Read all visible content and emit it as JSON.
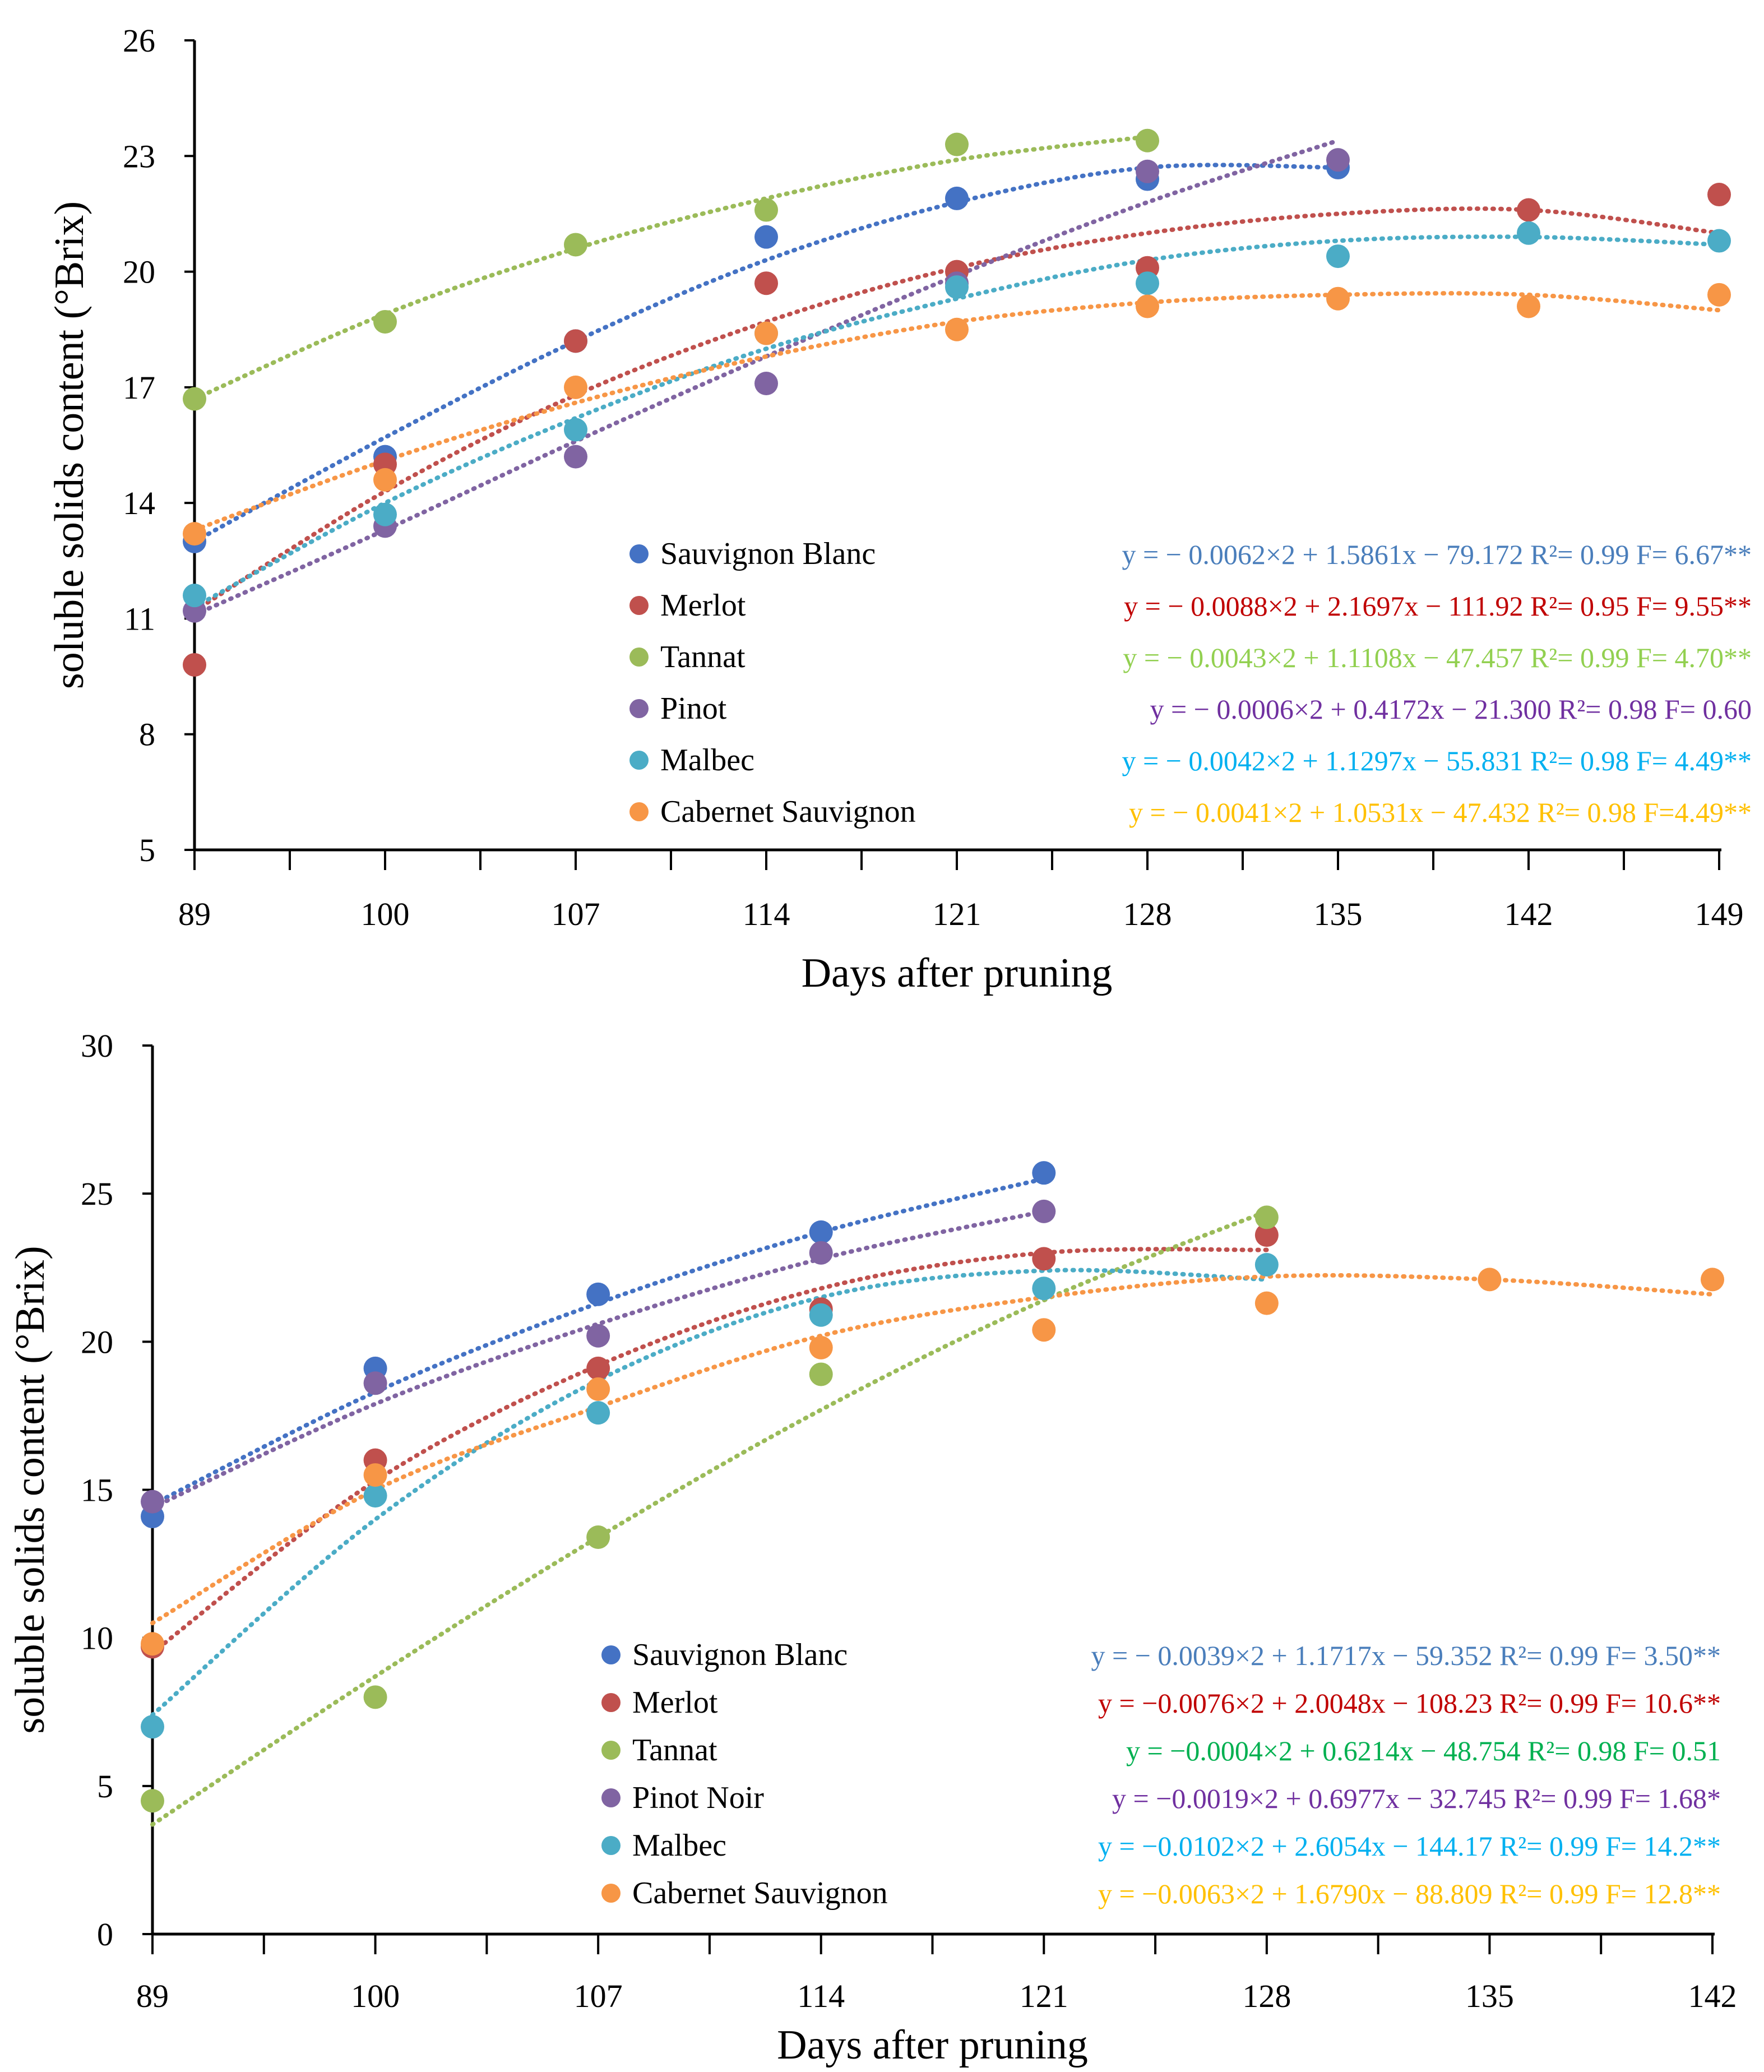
{
  "chart_data": [
    {
      "type": "scatter",
      "xlabel": "Days after pruning",
      "ylabel": "soluble solids content  (°Brix)",
      "x_ticks": [
        "89",
        "100",
        "107",
        "114",
        "121",
        "128",
        "135",
        "142",
        "149"
      ],
      "y_ticks": [
        "5",
        "8",
        "11",
        "14",
        "17",
        "20",
        "23",
        "26"
      ],
      "ylim": [
        5,
        26
      ],
      "series": [
        {
          "name": "Sauvignon Blanc",
          "color": "#4472C4",
          "eq_color": "#4A7EBB",
          "equation": "y = − 0.0062×2 + 1.5861x − 79.172 R²= 0.99 F= 6.67**",
          "points": [
            [
              0,
              13.0
            ],
            [
              1,
              15.2
            ],
            [
              2,
              18.2
            ],
            [
              3,
              20.9
            ],
            [
              4,
              21.9
            ],
            [
              5,
              22.4
            ],
            [
              6,
              22.7
            ]
          ],
          "trend": [
            13.0,
            15.7,
            18.2,
            20.3,
            21.8,
            22.7,
            22.7
          ]
        },
        {
          "name": "Merlot",
          "color": "#C0504D",
          "eq_color": "#C00000",
          "equation": "y = − 0.0088×2 + 2.1697x − 111.92 R²= 0.95 F= 9.55**",
          "points": [
            [
              0,
              9.8
            ],
            [
              1,
              15.0
            ],
            [
              2,
              18.2
            ],
            [
              3,
              19.7
            ],
            [
              4,
              20.0
            ],
            [
              5,
              20.1
            ],
            [
              7,
              21.6
            ],
            [
              8,
              22.0
            ]
          ],
          "trend": [
            11.2,
            14.3,
            16.8,
            18.7,
            20.1,
            21.0,
            21.5,
            21.6,
            21.0
          ]
        },
        {
          "name": "Tannat",
          "color": "#9BBB59",
          "eq_color": "#92D050",
          "equation": "y = − 0.0043×2 + 1.1108x − 47.457 R²= 0.99 F= 4.70**",
          "points": [
            [
              0,
              16.7
            ],
            [
              1,
              18.7
            ],
            [
              2,
              20.7
            ],
            [
              3,
              21.6
            ],
            [
              4,
              23.3
            ],
            [
              5,
              23.4
            ]
          ],
          "trend": [
            16.7,
            18.9,
            20.6,
            21.9,
            22.9,
            23.5
          ]
        },
        {
          "name": "Pinot",
          "color": "#8064A2",
          "eq_color": "#7030A0",
          "equation": "y = − 0.0006×2 + 0.4172x − 21.300 R²= 0.98 F= 0.60",
          "points": [
            [
              0,
              11.2
            ],
            [
              1,
              13.4
            ],
            [
              2,
              15.2
            ],
            [
              3,
              17.1
            ],
            [
              4,
              19.7
            ],
            [
              5,
              22.6
            ],
            [
              6,
              22.9
            ]
          ],
          "trend": [
            11.1,
            13.3,
            15.6,
            17.8,
            19.9,
            21.8,
            23.4
          ]
        },
        {
          "name": "Malbec",
          "color": "#4BACC6",
          "eq_color": "#00B0F0",
          "equation": "y = − 0.0042×2 + 1.1297x − 55.831 R²= 0.98 F= 4.49**",
          "points": [
            [
              0,
              11.6
            ],
            [
              1,
              13.7
            ],
            [
              2,
              15.9
            ],
            [
              3,
              18.4
            ],
            [
              4,
              19.6
            ],
            [
              5,
              19.7
            ],
            [
              6,
              20.4
            ],
            [
              7,
              21.0
            ],
            [
              8,
              20.8
            ]
          ],
          "trend": [
            11.3,
            14.0,
            16.2,
            18.0,
            19.3,
            20.3,
            20.8,
            20.9,
            20.7
          ]
        },
        {
          "name": "Cabernet Sauvignon",
          "color": "#F79646",
          "eq_color": "#FFC000",
          "equation": "y = − 0.0041×2 + 1.0531x − 47.432 R²= 0.98 F=4.49**",
          "points": [
            [
              0,
              13.2
            ],
            [
              1,
              14.6
            ],
            [
              2,
              17.0
            ],
            [
              3,
              18.4
            ],
            [
              4,
              18.5
            ],
            [
              5,
              19.1
            ],
            [
              6,
              19.3
            ],
            [
              7,
              19.1
            ],
            [
              8,
              19.4
            ]
          ],
          "trend": [
            13.3,
            15.1,
            16.6,
            17.8,
            18.7,
            19.2,
            19.4,
            19.4,
            19.0
          ]
        }
      ]
    },
    {
      "type": "scatter",
      "xlabel": "Days after pruning",
      "ylabel": "soluble solids content  (°Brix)",
      "x_ticks": [
        "89",
        "100",
        "107",
        "114",
        "121",
        "128",
        "135",
        "142"
      ],
      "y_ticks": [
        "0",
        "5",
        "10",
        "15",
        "20",
        "25",
        "30"
      ],
      "ylim": [
        0,
        30
      ],
      "series": [
        {
          "name": "Sauvignon Blanc",
          "color": "#4472C4",
          "eq_color": "#4A7EBB",
          "equation": "y = − 0.0039×2 + 1.1717x − 59.352 R²= 0.99 F= 3.50**",
          "points": [
            [
              0,
              14.1
            ],
            [
              1,
              19.1
            ],
            [
              2,
              21.6
            ],
            [
              3,
              23.7
            ],
            [
              4,
              25.7
            ]
          ],
          "trend": [
            14.5,
            18.3,
            21.3,
            23.7,
            25.5
          ]
        },
        {
          "name": "Merlot",
          "color": "#C0504D",
          "eq_color": "#C00000",
          "equation": "y = −0.0076×2 + 2.0048x − 108.23 R²= 0.99 F= 10.6**",
          "points": [
            [
              0,
              9.7
            ],
            [
              1,
              16.0
            ],
            [
              2,
              19.1
            ],
            [
              3,
              21.1
            ],
            [
              4,
              22.8
            ],
            [
              5,
              23.6
            ]
          ],
          "trend": [
            9.5,
            15.3,
            19.2,
            21.8,
            23.0,
            23.1
          ]
        },
        {
          "name": "Tannat",
          "color": "#9BBB59",
          "eq_color": "#00B050",
          "equation": "y = −0.0004×2 + 0.6214x − 48.754 R²= 0.98 F= 0.51",
          "points": [
            [
              0,
              4.5
            ],
            [
              1,
              8.0
            ],
            [
              2,
              13.4
            ],
            [
              3,
              18.9
            ],
            [
              5,
              24.2
            ]
          ],
          "trend": [
            3.7,
            8.7,
            13.4,
            17.7,
            21.4,
            24.4
          ]
        },
        {
          "name": "Pinot Noir",
          "color": "#8064A2",
          "eq_color": "#7030A0",
          "equation": "y = −0.0019×2 + 0.6977x − 32.745 R²= 0.99 F= 1.68*",
          "points": [
            [
              0,
              14.6
            ],
            [
              1,
              18.6
            ],
            [
              2,
              20.2
            ],
            [
              3,
              23.0
            ],
            [
              4,
              24.4
            ]
          ],
          "trend": [
            14.4,
            17.9,
            20.6,
            22.8,
            24.4
          ]
        },
        {
          "name": "Malbec",
          "color": "#4BACC6",
          "eq_color": "#00B0F0",
          "equation": "y = −0.0102×2 + 2.6054x − 144.17 R²= 0.99 F= 14.2**",
          "points": [
            [
              0,
              7.0
            ],
            [
              1,
              14.8
            ],
            [
              2,
              17.6
            ],
            [
              3,
              20.9
            ],
            [
              4,
              21.8
            ],
            [
              5,
              22.6
            ]
          ],
          "trend": [
            7.4,
            14.0,
            18.7,
            21.5,
            22.4,
            22.1
          ]
        },
        {
          "name": "Cabernet Sauvignon",
          "color": "#F79646",
          "eq_color": "#FFC000",
          "equation": "y = −0.0063×2 + 1.6790x − 88.809 R²= 0.99 F= 12.8**",
          "points": [
            [
              0,
              9.8
            ],
            [
              1,
              15.5
            ],
            [
              2,
              18.4
            ],
            [
              3,
              19.8
            ],
            [
              4,
              20.4
            ],
            [
              5,
              21.3
            ],
            [
              6,
              22.1
            ],
            [
              7,
              22.1
            ]
          ],
          "trend": [
            10.5,
            15.0,
            17.8,
            20.2,
            21.5,
            22.2,
            22.1,
            21.6
          ]
        }
      ]
    }
  ]
}
